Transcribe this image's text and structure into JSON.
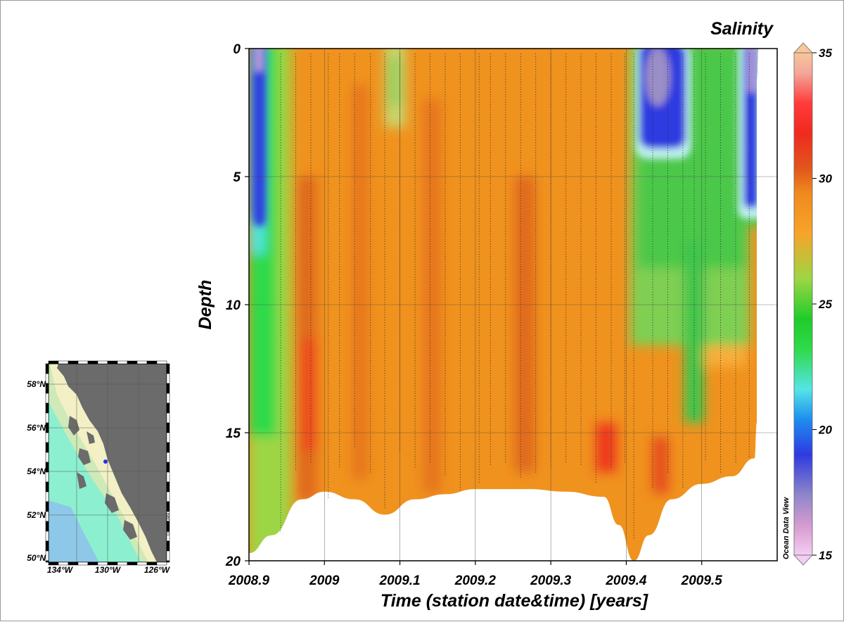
{
  "chart_data": {
    "type": "heatmap",
    "title": "Salinity",
    "xlabel": "Time (station date&time) [years]",
    "ylabel": "Depth",
    "xlim": [
      2008.9,
      2009.6
    ],
    "ylim": [
      0,
      20
    ],
    "x_ticks": [
      "2008.9",
      "2009",
      "2009.1",
      "2009.2",
      "2009.3",
      "2009.4",
      "2009.5"
    ],
    "y_ticks": [
      "0",
      "5",
      "10",
      "15",
      "20"
    ],
    "colorbar": {
      "min": 15,
      "max": 35,
      "ticks": [
        "15",
        "20",
        "25",
        "30",
        "35"
      ]
    },
    "watermark": "Ocean Data View",
    "bottom_depth_profile": [
      [
        2008.9,
        19.7
      ],
      [
        2008.93,
        19.0
      ],
      [
        2008.97,
        17.6
      ],
      [
        2009.0,
        17.3
      ],
      [
        2009.04,
        17.6
      ],
      [
        2009.08,
        18.2
      ],
      [
        2009.12,
        17.6
      ],
      [
        2009.16,
        17.4
      ],
      [
        2009.2,
        17.2
      ],
      [
        2009.27,
        17.2
      ],
      [
        2009.32,
        17.3
      ],
      [
        2009.37,
        17.5
      ],
      [
        2009.39,
        18.6
      ],
      [
        2009.41,
        20.0
      ],
      [
        2009.43,
        19.0
      ],
      [
        2009.46,
        17.6
      ],
      [
        2009.5,
        17.0
      ],
      [
        2009.54,
        16.7
      ],
      [
        2009.57,
        16.0
      ],
      [
        2009.573,
        14.6
      ],
      [
        2009.573,
        1.2
      ],
      [
        2009.575,
        0
      ]
    ],
    "station_casts": [
      [
        2008.942,
        18.9
      ],
      [
        2008.962,
        16.5
      ],
      [
        2008.982,
        16.2
      ],
      [
        2009.005,
        17.6
      ],
      [
        2009.02,
        16.4
      ],
      [
        2009.04,
        15.6
      ],
      [
        2009.061,
        16.6
      ],
      [
        2009.08,
        18.0
      ],
      [
        2009.1,
        15.8
      ],
      [
        2009.12,
        16.4
      ],
      [
        2009.14,
        16.2
      ],
      [
        2009.16,
        16.7
      ],
      [
        2009.18,
        17.3
      ],
      [
        2009.205,
        17.0
      ],
      [
        2009.22,
        16.3
      ],
      [
        2009.24,
        16.2
      ],
      [
        2009.26,
        16.8
      ],
      [
        2009.28,
        16.6
      ],
      [
        2009.3,
        16.4
      ],
      [
        2009.32,
        16.2
      ],
      [
        2009.34,
        16.3
      ],
      [
        2009.36,
        17.0
      ],
      [
        2009.38,
        16.4
      ],
      [
        2009.398,
        16.2
      ],
      [
        2009.41,
        19.2
      ],
      [
        2009.435,
        17.2
      ],
      [
        2009.455,
        16.6
      ],
      [
        2009.475,
        17.2
      ],
      [
        2009.49,
        14.5
      ],
      [
        2009.505,
        16.1
      ],
      [
        2009.525,
        16.6
      ],
      [
        2009.545,
        16.2
      ],
      [
        2009.563,
        16.0
      ]
    ],
    "salinity_features": [
      {
        "name": "fresh-surface-west",
        "x": [
          2008.9,
          2008.94
        ],
        "depth": [
          0,
          14
        ],
        "salinity": 18
      },
      {
        "name": "transition-west",
        "x": [
          2008.9,
          2008.96
        ],
        "depth": [
          0,
          19
        ],
        "salinity": 24
      },
      {
        "name": "high-salinity-core-west",
        "x": [
          2008.96,
          2009.0
        ],
        "depth": [
          6,
          16
        ],
        "salinity": 31.5
      },
      {
        "name": "fresh-lens-2009.1",
        "x": [
          2009.08,
          2009.11
        ],
        "depth": [
          0,
          4
        ],
        "salinity": 26
      },
      {
        "name": "high-salinity-core-2009.26",
        "x": [
          2009.24,
          2009.28
        ],
        "depth": [
          7,
          16
        ],
        "salinity": 31
      },
      {
        "name": "high-salinity-spot-2009.38",
        "x": [
          2009.36,
          2009.4
        ],
        "depth": [
          14,
          17
        ],
        "salinity": 32
      },
      {
        "name": "green-zone-east",
        "x": [
          2009.4,
          2009.57
        ],
        "depth": [
          0,
          14
        ],
        "salinity": 24
      },
      {
        "name": "fresh-core-2009.44",
        "x": [
          2009.41,
          2009.48
        ],
        "depth": [
          0,
          4
        ],
        "salinity": 17
      },
      {
        "name": "fresh-east-edge",
        "x": [
          2009.54,
          2009.575
        ],
        "depth": [
          0,
          7
        ],
        "salinity": 18
      },
      {
        "name": "high-salinity-spot-2009.46",
        "x": [
          2009.44,
          2009.48
        ],
        "depth": [
          14,
          18
        ],
        "salinity": 31
      }
    ]
  },
  "colors": {
    "background_salinity": "#f0921e",
    "colorbar_stops": [
      "#f4cdf2",
      "#d59ad0",
      "#8e86c9",
      "#2e3ae0",
      "#1e8df0",
      "#55e4e6",
      "#2fda4a",
      "#1fcc2a",
      "#9dd644",
      "#f7a42a",
      "#f08a1e",
      "#e1561c",
      "#f02a1e",
      "#ff3b3b",
      "#f3a79a",
      "#f7c69a"
    ]
  },
  "inset_map": {
    "lat_labels": [
      "58°N",
      "56°N",
      "54°N",
      "52°N",
      "50°N"
    ],
    "lon_labels": [
      "134°W",
      "130°W",
      "126°W"
    ],
    "watermark": "Ocean Data View"
  }
}
